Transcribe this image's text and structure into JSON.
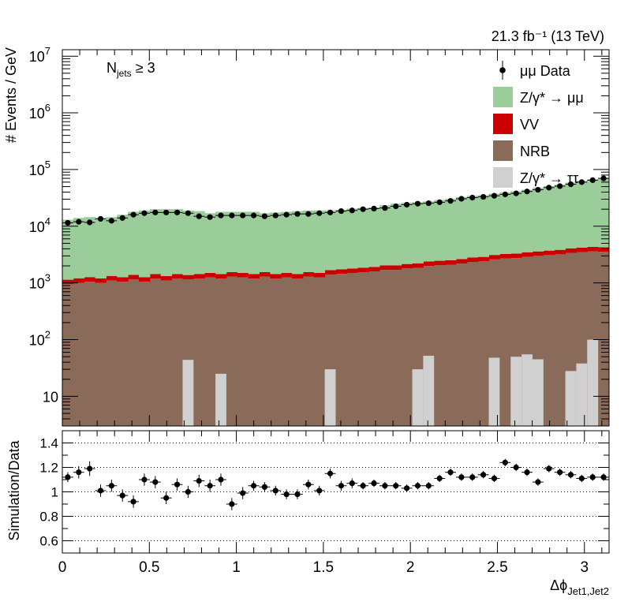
{
  "lumi_label": "21.3 fb⁻¹ (13 TeV)",
  "selection_label": "N_jets ≥ 3",
  "selection": {
    "symbol": "N",
    "sub": "jets",
    "rest": " ≥ 3"
  },
  "chart_data": [
    {
      "type": "histogram-stacked-log",
      "xlabel": "Δϕ_Jet1,Jet2",
      "ylabel": "# Events / GeV",
      "xlim": [
        0,
        3.1416
      ],
      "ylim": [
        3,
        13000000
      ],
      "log_y": true,
      "y_ticks": [
        {
          "value": 10,
          "label": "10"
        },
        {
          "value": 100,
          "label": "10",
          "sup": "2"
        },
        {
          "value": 1000,
          "label": "10",
          "sup": "3"
        },
        {
          "value": 10000,
          "label": "10",
          "sup": "4"
        },
        {
          "value": 100000,
          "label": "10",
          "sup": "5"
        },
        {
          "value": 1000000,
          "label": "10",
          "sup": "6"
        },
        {
          "value": 10000000,
          "label": "10",
          "sup": "7"
        }
      ],
      "bins": 50,
      "series": [
        {
          "name": "NRB",
          "kind": "fill",
          "color": "#8a6a58",
          "values": [
            950,
            1000,
            1050,
            1000,
            1100,
            1050,
            1150,
            1050,
            1200,
            1100,
            1200,
            1150,
            1200,
            1250,
            1200,
            1300,
            1250,
            1200,
            1300,
            1200,
            1250,
            1200,
            1300,
            1250,
            1400,
            1450,
            1500,
            1550,
            1600,
            1700,
            1700,
            1800,
            1850,
            2000,
            2050,
            2100,
            2200,
            2350,
            2400,
            2600,
            2700,
            2750,
            2900,
            3000,
            3100,
            3200,
            3400,
            3500,
            3600,
            3550
          ]
        },
        {
          "name": "VV",
          "kind": "fill",
          "color": "#cc0000",
          "values": [
            190,
            210,
            220,
            200,
            230,
            210,
            240,
            210,
            240,
            220,
            240,
            230,
            240,
            250,
            240,
            260,
            250,
            240,
            260,
            240,
            250,
            240,
            260,
            250,
            280,
            290,
            300,
            310,
            320,
            340,
            340,
            360,
            370,
            400,
            410,
            420,
            440,
            470,
            480,
            520,
            540,
            550,
            580,
            600,
            620,
            640,
            680,
            700,
            720,
            710
          ]
        },
        {
          "name": "Z/γ* → μμ",
          "kind": "fill",
          "color": "#9bcd9b",
          "values": [
            11900,
            12790,
            13230,
            12800,
            13170,
            14740,
            16610,
            17740,
            18560,
            18680,
            18560,
            17620,
            17060,
            15500,
            16560,
            16440,
            16500,
            16560,
            15440,
            16060,
            16500,
            17060,
            17440,
            17500,
            17320,
            17760,
            18700,
            19140,
            19580,
            21460,
            22960,
            23840,
            24280,
            25100,
            26540,
            27980,
            29860,
            31680,
            32620,
            34380,
            36260,
            38200,
            40520,
            44400,
            47280,
            50160,
            54920,
            58800,
            62680,
            64740
          ]
        },
        {
          "name": "Z/γ* → ττ",
          "kind": "fill",
          "color": "#d0d0d0",
          "values": [
            0,
            0,
            0,
            0,
            0,
            0,
            0,
            0,
            0,
            0,
            0,
            44,
            0,
            0,
            25,
            0,
            0,
            0,
            0,
            0,
            0,
            0,
            0,
            0,
            30,
            0,
            0,
            0,
            0,
            0,
            0,
            0,
            30,
            52,
            0,
            0,
            0,
            0,
            0,
            48,
            0,
            50,
            55,
            45,
            0,
            0,
            28,
            38,
            100,
            0
          ]
        }
      ],
      "data": {
        "name": "μμ Data",
        "kind": "points",
        "color": "#000000",
        "values": [
          11500,
          12000,
          11700,
          13500,
          12500,
          14000,
          16000,
          17000,
          17500,
          17500,
          17500,
          17000,
          15000,
          14500,
          15500,
          15500,
          15500,
          15500,
          15000,
          15500,
          16000,
          16500,
          16500,
          17000,
          17500,
          18500,
          19000,
          20000,
          20500,
          21000,
          22500,
          24000,
          25000,
          25500,
          26500,
          28000,
          30500,
          32000,
          33000,
          34500,
          36500,
          38000,
          41000,
          44000,
          48000,
          51000,
          55000,
          60000,
          65000,
          70000
        ]
      },
      "legend": {
        "position": "top-right",
        "entries": [
          {
            "label": "μμ Data",
            "kind": "point",
            "color": "#000000"
          },
          {
            "label": "Z/γ* → μμ",
            "kind": "box",
            "color": "#9bcd9b"
          },
          {
            "label": "VV",
            "kind": "box",
            "color": "#cc0000"
          },
          {
            "label": "NRB",
            "kind": "box",
            "color": "#8a6a58"
          },
          {
            "label": "Z/γ* → ττ",
            "kind": "box",
            "color": "#d0d0d0"
          }
        ]
      }
    },
    {
      "type": "ratio",
      "ylabel": "Simulation/Data",
      "xlabel": "Δϕ_Jet1,Jet2",
      "xlim": [
        0,
        3.1416
      ],
      "ylim": [
        0.5,
        1.5
      ],
      "grid_y": [
        0.6,
        0.8,
        1.0,
        1.2,
        1.4
      ],
      "y_ticks": [
        {
          "value": 0.6,
          "label": "0.6"
        },
        {
          "value": 0.8,
          "label": "0.8"
        },
        {
          "value": 1.0,
          "label": "1"
        },
        {
          "value": 1.2,
          "label": "1.2"
        },
        {
          "value": 1.4,
          "label": "1.4"
        }
      ],
      "x_ticks": [
        {
          "value": 0,
          "label": "0"
        },
        {
          "value": 0.5,
          "label": "0.5"
        },
        {
          "value": 1.0,
          "label": "1"
        },
        {
          "value": 1.5,
          "label": "1.5"
        },
        {
          "value": 2.0,
          "label": "2"
        },
        {
          "value": 2.5,
          "label": "2.5"
        },
        {
          "value": 3.0,
          "label": "3"
        }
      ],
      "values": [
        1.12,
        1.16,
        1.19,
        1.01,
        1.05,
        0.97,
        0.92,
        1.1,
        1.08,
        0.95,
        1.06,
        1.0,
        1.09,
        1.05,
        1.1,
        0.9,
        0.99,
        1.05,
        1.04,
        1.01,
        0.98,
        0.98,
        1.06,
        1.01,
        1.15,
        1.05,
        1.07,
        1.05,
        1.07,
        1.05,
        1.05,
        1.03,
        1.05,
        1.05,
        1.11,
        1.16,
        1.12,
        1.12,
        1.14,
        1.11,
        1.24,
        1.2,
        1.16,
        1.08,
        1.19,
        1.16,
        1.14,
        1.11,
        1.12,
        1.12
      ],
      "errors": [
        0.04,
        0.05,
        0.06,
        0.05,
        0.05,
        0.05,
        0.05,
        0.05,
        0.05,
        0.05,
        0.05,
        0.05,
        0.05,
        0.05,
        0.05,
        0.05,
        0.05,
        0.04,
        0.04,
        0.04,
        0.04,
        0.04,
        0.04,
        0.04,
        0.04,
        0.04,
        0.04,
        0.03,
        0.03,
        0.03,
        0.03,
        0.03,
        0.03,
        0.03,
        0.03,
        0.03,
        0.03,
        0.03,
        0.03,
        0.03,
        0.03,
        0.03,
        0.03,
        0.03,
        0.03,
        0.03,
        0.03,
        0.03,
        0.03,
        0.03
      ]
    }
  ]
}
